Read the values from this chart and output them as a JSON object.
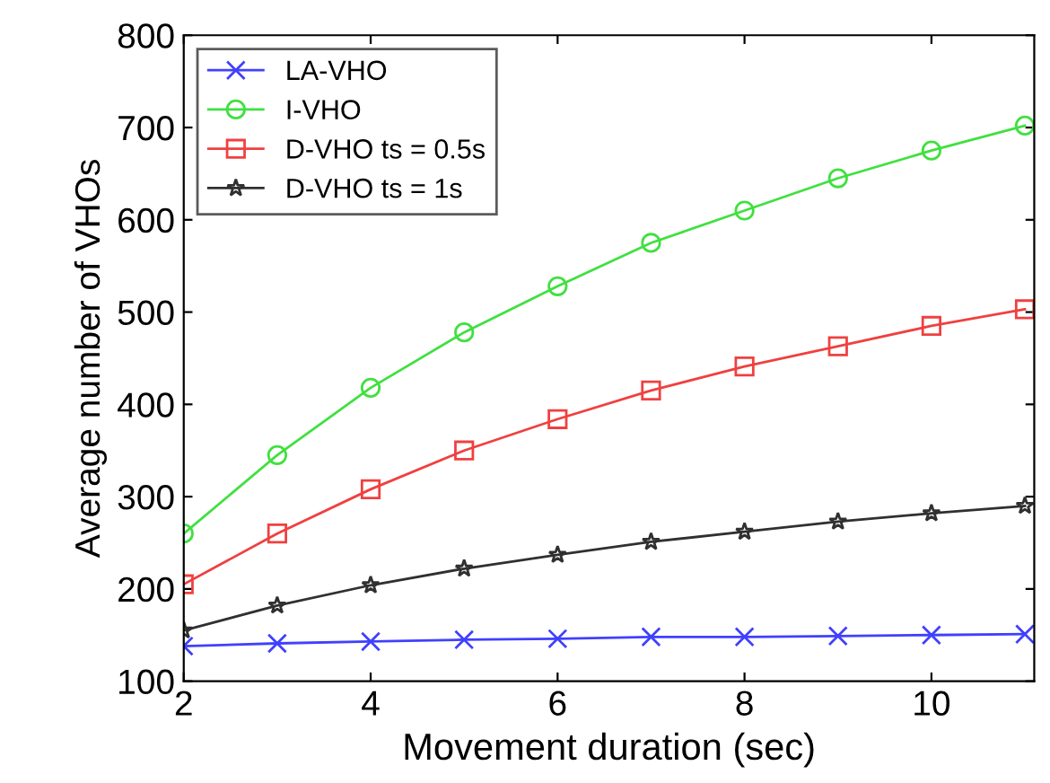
{
  "chart_data": {
    "type": "line",
    "xlabel": "Movement duration (sec)",
    "ylabel": "Average number of VHOs",
    "x": [
      2,
      3,
      4,
      5,
      6,
      7,
      8,
      9,
      10,
      11
    ],
    "series": [
      {
        "name": "LA-VHO",
        "color": "#4040ff",
        "marker": "cross",
        "values": [
          138,
          141,
          143,
          145,
          146,
          148,
          148,
          149,
          150,
          151
        ]
      },
      {
        "name": "I-VHO",
        "color": "#40e040",
        "marker": "circle",
        "values": [
          260,
          345,
          418,
          478,
          528,
          575,
          610,
          645,
          675,
          702
        ]
      },
      {
        "name": "D-VHO ts = 0.5s",
        "color": "#f04040",
        "marker": "square",
        "values": [
          205,
          260,
          308,
          350,
          384,
          415,
          441,
          463,
          485,
          503
        ]
      },
      {
        "name": "D-VHO ts = 1s",
        "color": "#303030",
        "marker": "star",
        "values": [
          155,
          182,
          204,
          222,
          237,
          251,
          262,
          273,
          282,
          290
        ]
      }
    ],
    "xlim": [
      2,
      11.1
    ],
    "ylim": [
      100,
      800
    ],
    "xticks": [
      2,
      4,
      6,
      8,
      10
    ],
    "yticks": [
      100,
      200,
      300,
      400,
      500,
      600,
      700,
      800
    ],
    "grid": false,
    "legend": "top left"
  }
}
